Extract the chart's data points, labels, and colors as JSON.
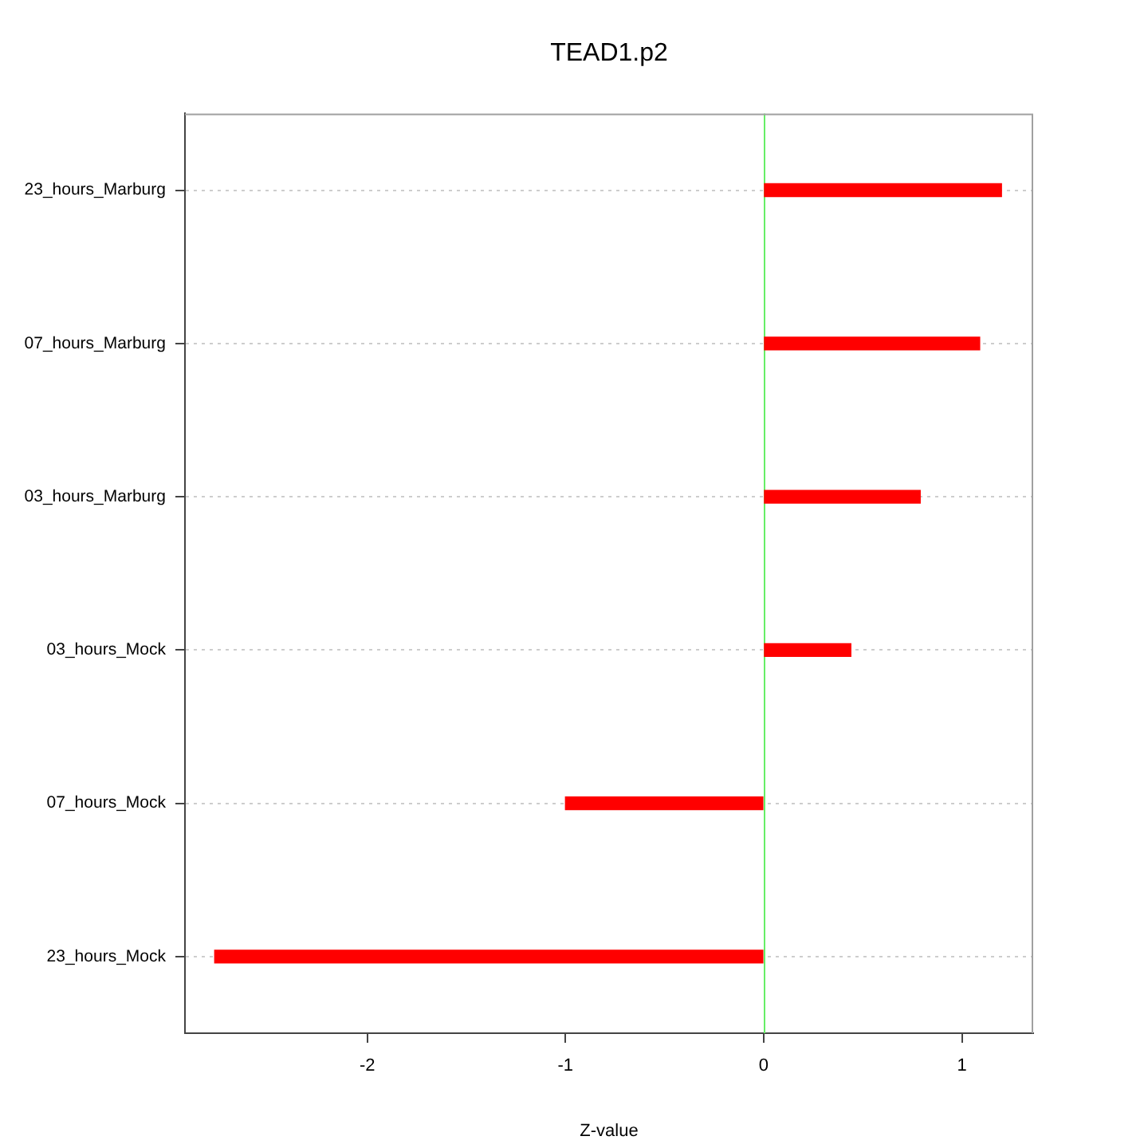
{
  "chart_data": {
    "type": "bar",
    "orientation": "horizontal",
    "title": "TEAD1.p2",
    "xlabel": "Z-value",
    "categories": [
      "23_hours_Marburg",
      "07_hours_Marburg",
      "03_hours_Marburg",
      "03_hours_Mock",
      "07_hours_Mock",
      "23_hours_Mock"
    ],
    "values": [
      1.2,
      1.09,
      0.79,
      0.44,
      -1.0,
      -2.77
    ],
    "color": "#ff0000",
    "xlim": [
      -2.92,
      1.36
    ],
    "xticks": [
      -2,
      -1,
      0,
      1
    ],
    "grid": "y",
    "legend": false,
    "ref_lines": [
      {
        "axis": "x",
        "value": 0,
        "color": "#66ee66"
      }
    ]
  }
}
